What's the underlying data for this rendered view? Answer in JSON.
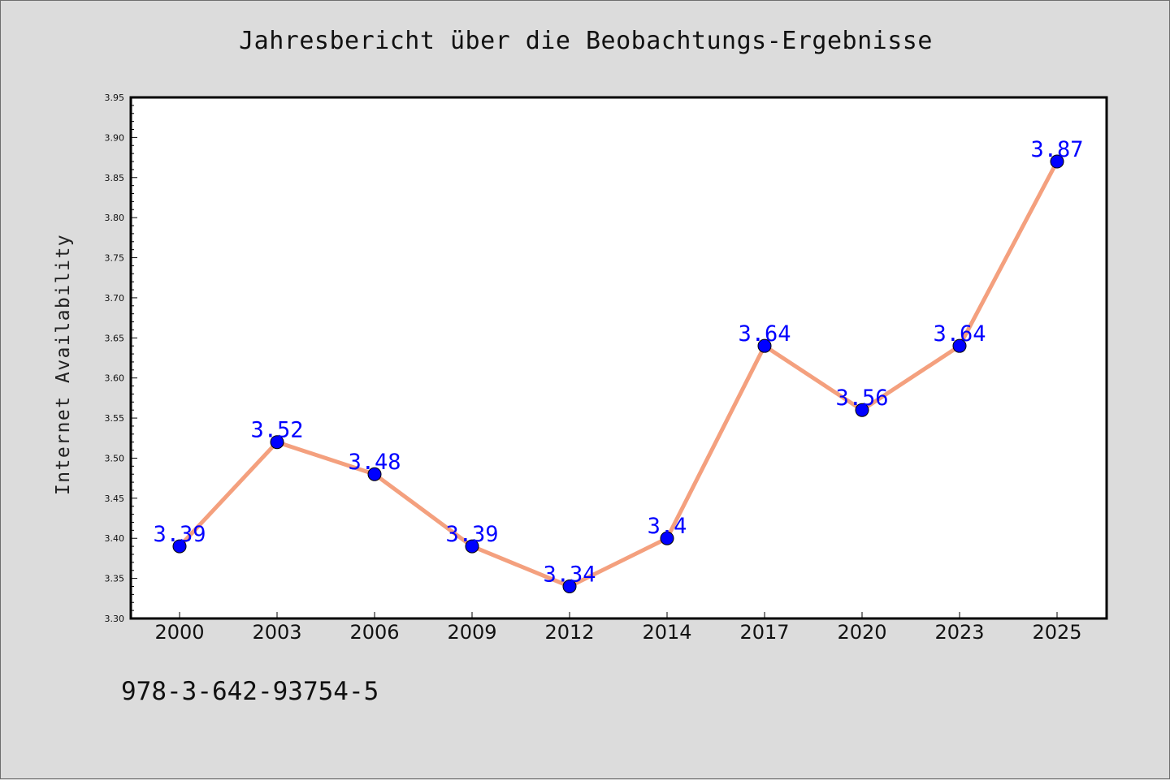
{
  "chart_data": {
    "type": "line",
    "title": "Jahresbericht über die Beobachtungs-Ergebnisse",
    "xlabel": "",
    "ylabel": "Internet Availability",
    "categories": [
      "2000",
      "2003",
      "2006",
      "2009",
      "2012",
      "2014",
      "2017",
      "2020",
      "2023",
      "2025"
    ],
    "series": [
      {
        "values": [
          3.39,
          3.52,
          3.48,
          3.39,
          3.34,
          3.4,
          3.64,
          3.56,
          3.64,
          3.87
        ],
        "labels": [
          "3.39",
          "3.52",
          "3.48",
          "3.39",
          "3.34",
          "3.4",
          "3.64",
          "3.56",
          "3.64",
          "3.87"
        ]
      }
    ],
    "ylim": [
      3.3,
      3.95
    ],
    "yticks": [
      "3.30",
      "3.35",
      "3.40",
      "3.45",
      "3.50",
      "3.55",
      "3.60",
      "3.65",
      "3.70",
      "3.75",
      "3.80",
      "3.85",
      "3.90",
      "3.95"
    ],
    "grid": false,
    "colors": {
      "line": "#f4a07e",
      "marker": "#0000ff",
      "label": "#0000ff",
      "plot_bg": "#ffffff",
      "page_bg": "#dcdcdc"
    }
  },
  "footer": {
    "code": "978-3-642-93754-5"
  }
}
